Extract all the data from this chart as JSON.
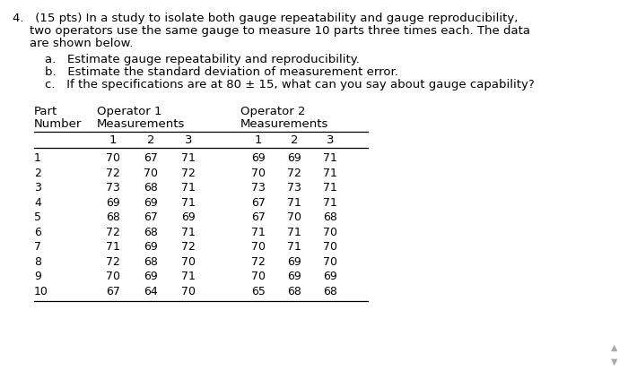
{
  "part_numbers": [
    1,
    2,
    3,
    4,
    5,
    6,
    7,
    8,
    9,
    10
  ],
  "op1_data": [
    [
      70,
      67,
      71
    ],
    [
      72,
      70,
      72
    ],
    [
      73,
      68,
      71
    ],
    [
      69,
      69,
      71
    ],
    [
      68,
      67,
      69
    ],
    [
      72,
      68,
      71
    ],
    [
      71,
      69,
      72
    ],
    [
      72,
      68,
      70
    ],
    [
      70,
      69,
      71
    ],
    [
      67,
      64,
      70
    ]
  ],
  "op2_data": [
    [
      69,
      69,
      71
    ],
    [
      70,
      72,
      71
    ],
    [
      73,
      73,
      71
    ],
    [
      67,
      71,
      71
    ],
    [
      67,
      70,
      68
    ],
    [
      71,
      71,
      70
    ],
    [
      70,
      71,
      70
    ],
    [
      72,
      69,
      70
    ],
    [
      70,
      69,
      69
    ],
    [
      65,
      68,
      68
    ]
  ],
  "bg_color": "#ffffff",
  "text_color": "#000000",
  "font_size": 9.5,
  "font_size_small": 9.0,
  "line1": "4.   (15 pts) In a study to isolate both gauge repeatability and gauge reproducibility,",
  "line2": "two operators use the same gauge to measure 10 parts three times each. The data",
  "line3": "are shown below.",
  "sub_a": "a.   Estimate gauge repeatability and reproducibility.",
  "sub_b": "b.   Estimate the standard deviation of measurement error.",
  "sub_c": "c.   If the specifications are at 80 ± 15, what can you say about gauge capability?"
}
